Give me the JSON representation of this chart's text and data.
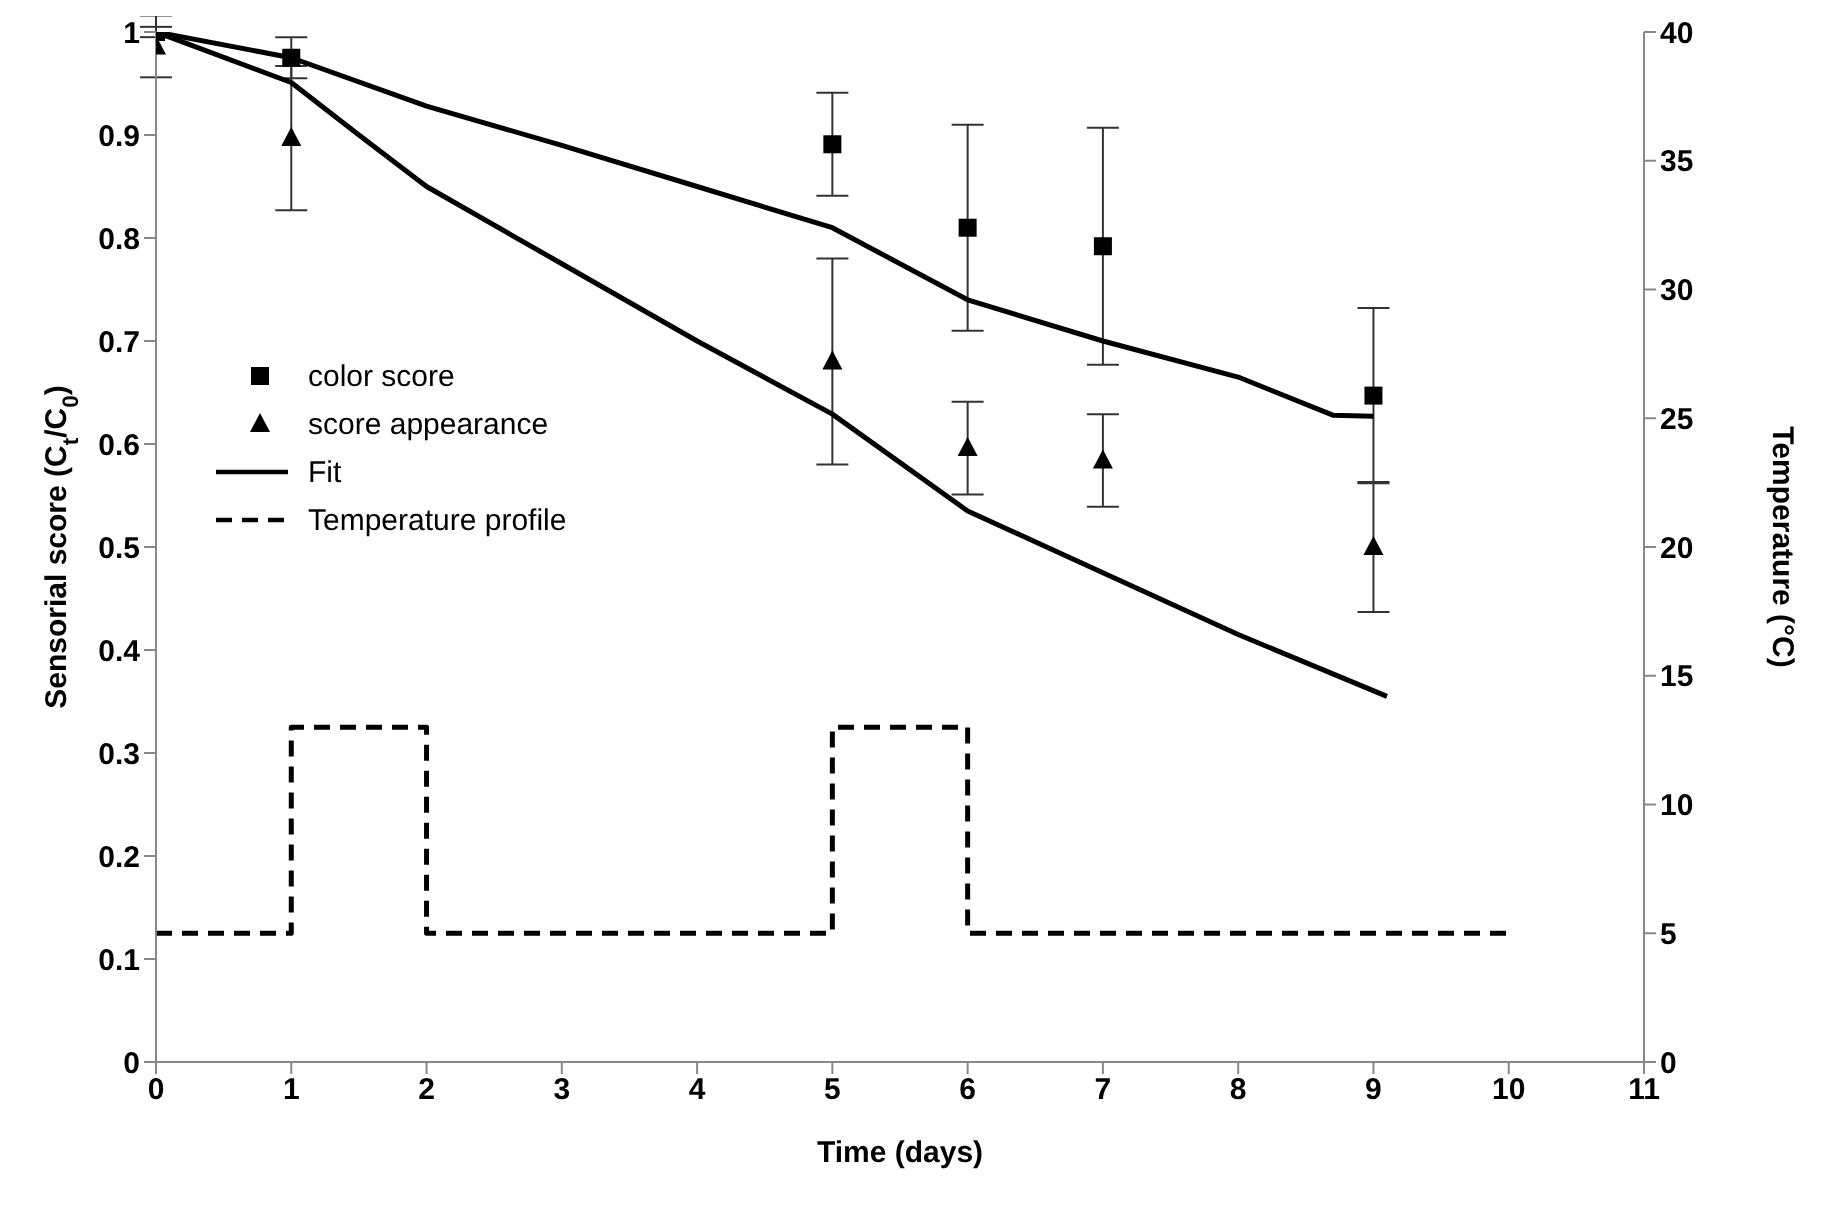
{
  "chart_data": {
    "type": "scatter",
    "xlabel": "Time (days)",
    "ylabel": "Sensorial score (C$_{t}$/C$_{0}$)",
    "y2label": "Temperature (°C)",
    "xlim": [
      0,
      11
    ],
    "xticks": [
      0,
      1,
      2,
      3,
      4,
      5,
      6,
      7,
      8,
      9,
      10,
      11
    ],
    "ylim": [
      0,
      1
    ],
    "yticks": [
      0,
      0.1,
      0.2,
      0.3,
      0.4,
      0.5,
      0.6,
      0.7,
      0.8,
      0.9,
      1
    ],
    "y2lim": [
      0,
      40
    ],
    "y2ticks": [
      0,
      5,
      10,
      15,
      20,
      25,
      30,
      35,
      40
    ],
    "grid": false,
    "legend": "left",
    "series": [
      {
        "name": "color score",
        "marker": "square",
        "color": "#000000",
        "x": [
          0,
          1,
          5,
          6,
          7,
          9
        ],
        "values": [
          1.0,
          0.975,
          0.891,
          0.81,
          0.792,
          0.647
        ],
        "errors": [
          0.005,
          0.02,
          0.05,
          0.1,
          0.115,
          0.085
        ]
      },
      {
        "name": "score appearance",
        "marker": "triangle",
        "color": "#000000",
        "x": [
          0,
          1,
          5,
          6,
          7,
          9
        ],
        "values": [
          0.986,
          0.897,
          0.68,
          0.596,
          0.584,
          0.5
        ],
        "errors": [
          0.03,
          0.07,
          0.1,
          0.045,
          0.045,
          0.063
        ]
      },
      {
        "name": "Fit",
        "type": "line",
        "marker": "none",
        "line_style": "solid",
        "color": "#000000",
        "x": [
          0,
          1,
          2,
          3,
          4,
          5,
          6,
          7,
          8,
          8.7,
          9
        ],
        "values": [
          1.0,
          0.975,
          0.928,
          0.89,
          0.85,
          0.81,
          0.74,
          0.7,
          0.665,
          0.628,
          0.627
        ]
      },
      {
        "type": "line",
        "marker": "none",
        "line_style": "solid",
        "color": "#000000",
        "x": [
          0,
          1,
          1.5,
          2,
          3,
          4,
          5,
          6,
          7,
          8,
          9.1
        ],
        "values": [
          1.0,
          0.951,
          0.9,
          0.85,
          0.775,
          0.7,
          0.629,
          0.535,
          0.475,
          0.415,
          0.355
        ]
      },
      {
        "name": "Temperature profile",
        "type": "step",
        "axis": "y2",
        "marker": "none",
        "line_style": "dashed",
        "color": "#000000",
        "x": [
          0,
          1,
          2,
          5,
          6,
          10
        ],
        "values": [
          5,
          13,
          5,
          13,
          5,
          5
        ]
      }
    ]
  }
}
